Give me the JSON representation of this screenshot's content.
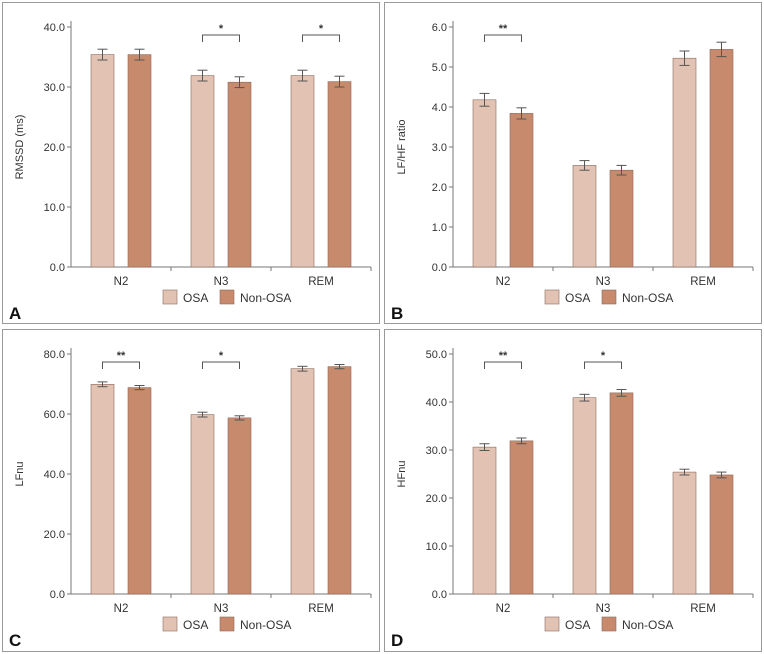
{
  "colors": {
    "osa": "#e2c3b3",
    "non_osa": "#c88a6c",
    "axis": "#777777",
    "bar_stroke": "#8a6a5a"
  },
  "legend": {
    "osa": "OSA",
    "non_osa": "Non-OSA"
  },
  "chart_data": [
    {
      "panel": "A",
      "type": "bar",
      "title": "",
      "ylabel": "RMSSD (ms)",
      "xlabel": "",
      "categories": [
        "N2",
        "N3",
        "REM"
      ],
      "ylim": [
        0,
        40
      ],
      "yticks": [
        "0.0",
        "10.0",
        "20.0",
        "30.0",
        "40.0"
      ],
      "yticks_values": [
        0,
        10,
        20,
        30,
        40
      ],
      "series": [
        {
          "name": "OSA",
          "values": [
            35.4,
            31.9,
            31.9
          ],
          "errors": [
            0.9,
            0.9,
            0.9
          ]
        },
        {
          "name": "Non-OSA",
          "values": [
            35.4,
            30.8,
            30.9
          ],
          "errors": [
            0.9,
            0.9,
            0.9
          ]
        }
      ],
      "significance": [
        {
          "category": "N3",
          "label": "*"
        },
        {
          "category": "REM",
          "label": "*"
        }
      ]
    },
    {
      "panel": "B",
      "type": "bar",
      "title": "",
      "ylabel": "LF/HF ratio",
      "xlabel": "",
      "categories": [
        "N2",
        "N3",
        "REM"
      ],
      "ylim": [
        0,
        6
      ],
      "yticks": [
        "0.0",
        "1.0",
        "2.0",
        "3.0",
        "4.0",
        "5.0",
        "6.0"
      ],
      "yticks_values": [
        0,
        1,
        2,
        3,
        4,
        5,
        6
      ],
      "series": [
        {
          "name": "OSA",
          "values": [
            4.18,
            2.54,
            5.22
          ],
          "errors": [
            0.16,
            0.12,
            0.18
          ]
        },
        {
          "name": "Non-OSA",
          "values": [
            3.84,
            2.42,
            5.44
          ],
          "errors": [
            0.14,
            0.12,
            0.18
          ]
        }
      ],
      "significance": [
        {
          "category": "N2",
          "label": "**"
        }
      ]
    },
    {
      "panel": "C",
      "type": "bar",
      "title": "",
      "ylabel": "LFnu",
      "xlabel": "",
      "categories": [
        "N2",
        "N3",
        "REM"
      ],
      "ylim": [
        0,
        80
      ],
      "yticks": [
        "0.0",
        "20.0",
        "40.0",
        "60.0",
        "80.0"
      ],
      "yticks_values": [
        0,
        20,
        40,
        60,
        80
      ],
      "series": [
        {
          "name": "OSA",
          "values": [
            69.9,
            59.8,
            75.1
          ],
          "errors": [
            0.8,
            0.8,
            0.8
          ]
        },
        {
          "name": "Non-OSA",
          "values": [
            68.8,
            58.7,
            75.8
          ],
          "errors": [
            0.7,
            0.7,
            0.7
          ]
        }
      ],
      "significance": [
        {
          "category": "N2",
          "label": "**"
        },
        {
          "category": "N3",
          "label": "*"
        }
      ]
    },
    {
      "panel": "D",
      "type": "bar",
      "title": "",
      "ylabel": "HFnu",
      "xlabel": "",
      "categories": [
        "N2",
        "N3",
        "REM"
      ],
      "ylim": [
        0,
        50
      ],
      "yticks": [
        "0.0",
        "10.0",
        "20.0",
        "30.0",
        "40.0",
        "50.0"
      ],
      "yticks_values": [
        0,
        10,
        20,
        30,
        40,
        50
      ],
      "series": [
        {
          "name": "OSA",
          "values": [
            30.6,
            40.9,
            25.4
          ],
          "errors": [
            0.7,
            0.7,
            0.6
          ]
        },
        {
          "name": "Non-OSA",
          "values": [
            31.9,
            41.9,
            24.8
          ],
          "errors": [
            0.6,
            0.7,
            0.6
          ]
        }
      ],
      "significance": [
        {
          "category": "N2",
          "label": "**"
        },
        {
          "category": "N3",
          "label": "*"
        }
      ]
    }
  ]
}
